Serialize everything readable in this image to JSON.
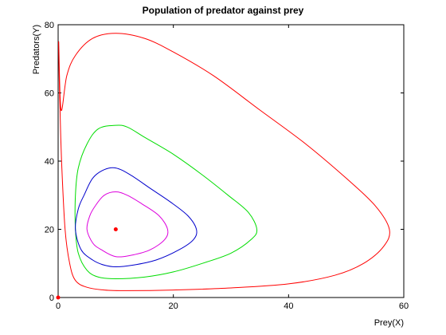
{
  "chart_data": {
    "type": "line",
    "title": "Population of predator against prey",
    "xlabel": "Prey(X)",
    "ylabel": "Predators(Y)",
    "xlim": [
      0,
      60
    ],
    "ylim": [
      0,
      80
    ],
    "xticks": [
      0,
      20,
      40,
      60
    ],
    "yticks": [
      0,
      20,
      40,
      60,
      80
    ],
    "xtick_labels": [
      "0",
      "20",
      "40",
      "60"
    ],
    "ytick_labels": [
      "0",
      "20",
      "40",
      "60",
      "80"
    ],
    "grid": false,
    "legend": "none",
    "equilibrium": {
      "x": 10,
      "y": 20,
      "color": "#ff0000"
    },
    "origin_point": {
      "x": 0,
      "y": 0,
      "color": "#ff0000"
    },
    "series": [
      {
        "color": "#ff0000",
        "points": [
          [
            0.1,
            75
          ],
          [
            0.25,
            60
          ],
          [
            0.6,
            40
          ],
          [
            1.2,
            20
          ],
          [
            2,
            10
          ],
          [
            3,
            5
          ],
          [
            5,
            3
          ],
          [
            8,
            2.2
          ],
          [
            12,
            2
          ],
          [
            20,
            2.2
          ],
          [
            30,
            2.8
          ],
          [
            40,
            4
          ],
          [
            48,
            6.5
          ],
          [
            53,
            10
          ],
          [
            56.5,
            15
          ],
          [
            57.5,
            20
          ],
          [
            55,
            27
          ],
          [
            50,
            35
          ],
          [
            43,
            45
          ],
          [
            35,
            55
          ],
          [
            27,
            65
          ],
          [
            20,
            72
          ],
          [
            15,
            76
          ],
          [
            10,
            77.5
          ],
          [
            6,
            76
          ],
          [
            3,
            71
          ],
          [
            1.5,
            65
          ],
          [
            0.5,
            55
          ]
        ]
      },
      {
        "color": "#00dd00",
        "points": [
          [
            3,
            20
          ],
          [
            3.5,
            13
          ],
          [
            5,
            8
          ],
          [
            7,
            6
          ],
          [
            10,
            5.5
          ],
          [
            15,
            6
          ],
          [
            20,
            7.5
          ],
          [
            25,
            10
          ],
          [
            30,
            13
          ],
          [
            33.5,
            17
          ],
          [
            34.5,
            20
          ],
          [
            33,
            25
          ],
          [
            29.5,
            30
          ],
          [
            25,
            36
          ],
          [
            20,
            42
          ],
          [
            15,
            47
          ],
          [
            12,
            50
          ],
          [
            10,
            50.5
          ],
          [
            7,
            49.5
          ],
          [
            5,
            45
          ],
          [
            3.5,
            38
          ],
          [
            3,
            30
          ]
        ]
      },
      {
        "color": "#0000cc",
        "points": [
          [
            3,
            20
          ],
          [
            4,
            14
          ],
          [
            6,
            11
          ],
          [
            8,
            9.5
          ],
          [
            10,
            9
          ],
          [
            13,
            9.5
          ],
          [
            17,
            11
          ],
          [
            21,
            14
          ],
          [
            23.5,
            17
          ],
          [
            24,
            20
          ],
          [
            22.5,
            24
          ],
          [
            19.5,
            28
          ],
          [
            16,
            32
          ],
          [
            12.5,
            36
          ],
          [
            10,
            38
          ],
          [
            8,
            37.5
          ],
          [
            6,
            35
          ],
          [
            4.5,
            30
          ],
          [
            3.5,
            26
          ]
        ]
      },
      {
        "color": "#dd00dd",
        "points": [
          [
            5,
            20
          ],
          [
            6,
            16
          ],
          [
            7.5,
            14
          ],
          [
            10,
            12
          ],
          [
            13,
            12.5
          ],
          [
            16,
            14
          ],
          [
            18.5,
            17
          ],
          [
            19,
            20
          ],
          [
            17.5,
            24
          ],
          [
            14.5,
            27.5
          ],
          [
            12,
            30
          ],
          [
            10,
            31
          ],
          [
            8,
            30
          ],
          [
            6.5,
            27
          ],
          [
            5.5,
            24
          ]
        ]
      }
    ]
  }
}
